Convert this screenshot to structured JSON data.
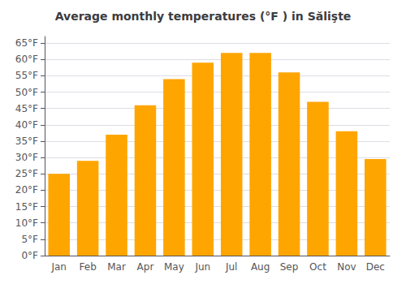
{
  "chart_data": {
    "type": "bar",
    "title": "Average monthly temperatures (°F ) in Sălişte",
    "categories": [
      "Jan",
      "Feb",
      "Mar",
      "Apr",
      "May",
      "Jun",
      "Jul",
      "Aug",
      "Sep",
      "Oct",
      "Nov",
      "Dec"
    ],
    "values": [
      25,
      29,
      37,
      46,
      54,
      59,
      62,
      62,
      56,
      47,
      38,
      29.5
    ],
    "color": "#FFA500",
    "ylim": [
      0,
      67
    ],
    "yticks": [
      {
        "value": 0,
        "label": "0°F"
      },
      {
        "value": 5,
        "label": "5°F"
      },
      {
        "value": 10,
        "label": "10°F"
      },
      {
        "value": 15,
        "label": "15°F"
      },
      {
        "value": 20,
        "label": "20°F"
      },
      {
        "value": 25,
        "label": "25°F"
      },
      {
        "value": 30,
        "label": "30°F"
      },
      {
        "value": 35,
        "label": "35°F"
      },
      {
        "value": 40,
        "label": "40°F"
      },
      {
        "value": 45,
        "label": "45°F"
      },
      {
        "value": 50,
        "label": "50°F"
      },
      {
        "value": 55,
        "label": "55°F"
      },
      {
        "value": 60,
        "label": "60°F"
      },
      {
        "value": 65,
        "label": "65°F"
      }
    ],
    "grid": true
  }
}
